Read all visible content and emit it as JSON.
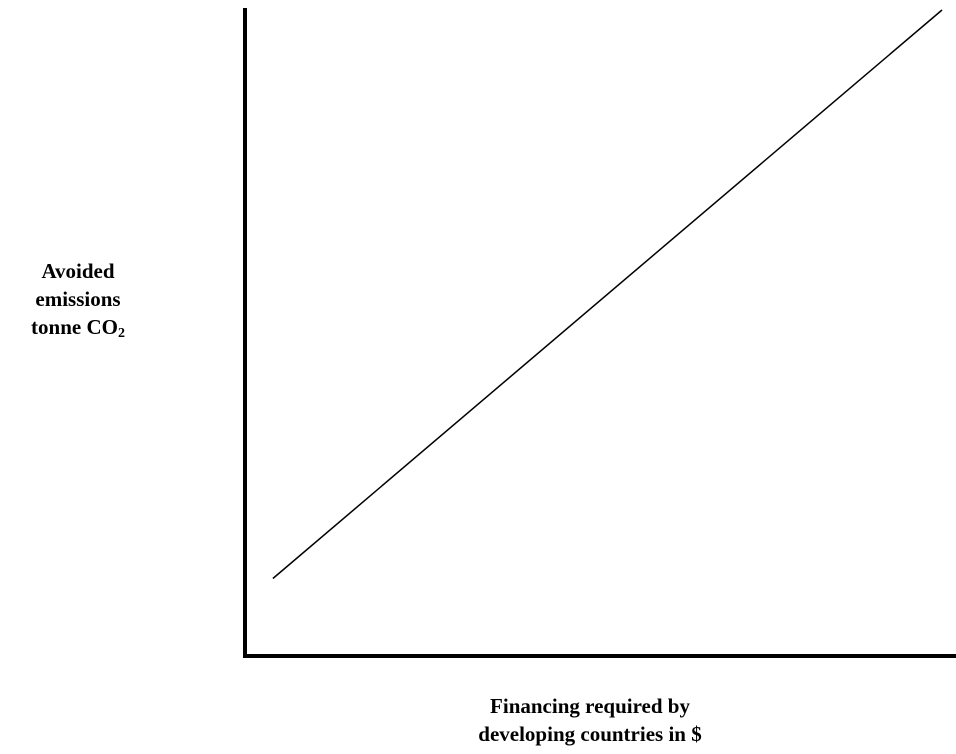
{
  "chart_data": {
    "type": "line",
    "title": "",
    "xlabel_lines": [
      "Financing required by",
      "developing countries in $"
    ],
    "ylabel_lines": [
      "Avoided",
      "emissions",
      "tonne CO"
    ],
    "ylabel_subscript": "2",
    "axis_ticks": "none",
    "grid": false,
    "xlim": [
      0,
      1
    ],
    "ylim": [
      0,
      1
    ],
    "series": [
      {
        "x": [
          0.04,
          1.0
        ],
        "y": [
          0.12,
          1.0
        ],
        "color": "#000000"
      }
    ]
  },
  "colors": {
    "axis": "#000000",
    "line": "#000000",
    "background": "#ffffff"
  }
}
